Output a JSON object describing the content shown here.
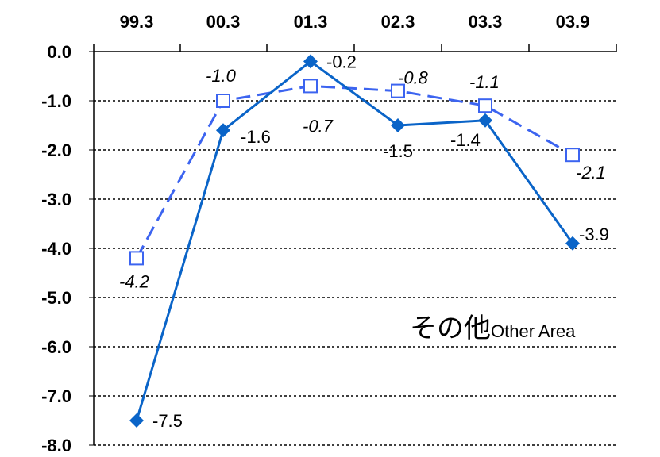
{
  "chart_data": {
    "type": "line",
    "title": "その他",
    "subtitle": "Other Area",
    "categories": [
      "99.3",
      "00.3",
      "01.3",
      "02.3",
      "03.3",
      "03.9"
    ],
    "x_axis_position": "top",
    "ylim": [
      -8.0,
      0.0
    ],
    "y_ticks": [
      "0.0",
      "-1.0",
      "-2.0",
      "-3.0",
      "-4.0",
      "-5.0",
      "-6.0",
      "-7.0",
      "-8.0"
    ],
    "grid": "horizontal-dotted",
    "series": [
      {
        "values": [
          -7.5,
          -1.6,
          -0.2,
          -1.5,
          -1.4,
          -3.9
        ],
        "labels": [
          "-7.5",
          "-1.6",
          "-0.2",
          "-1.5",
          "-1.4",
          "-3.9"
        ],
        "color": "#0a64c8",
        "marker": "filled-diamond",
        "line": "solid"
      },
      {
        "values": [
          -4.2,
          -1.0,
          -0.7,
          -0.8,
          -1.1,
          -2.1
        ],
        "labels": [
          "-4.2",
          "-1.0",
          "-0.7",
          "-0.8",
          "-1.1",
          "-2.1"
        ],
        "color": "#3c64f0",
        "marker": "open-square",
        "line": "dashed"
      }
    ]
  }
}
